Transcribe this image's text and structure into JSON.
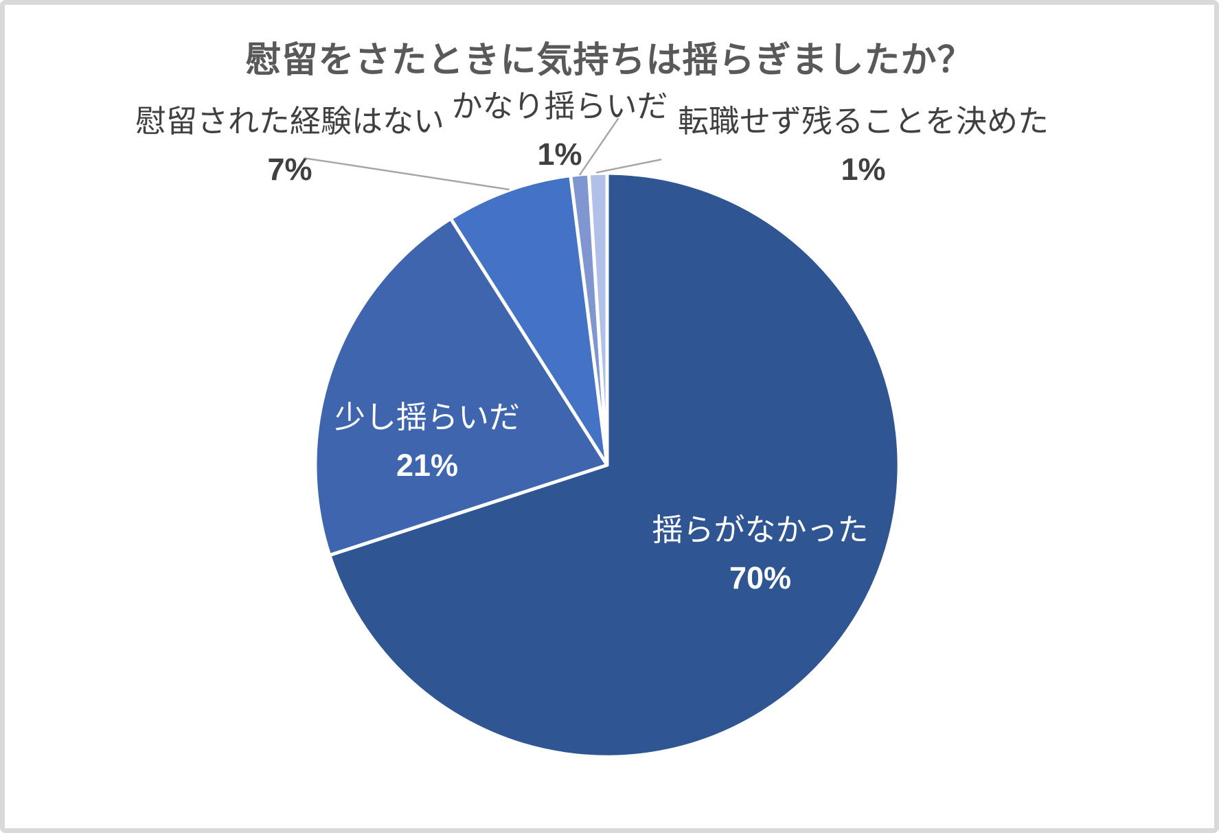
{
  "palette": {
    "frame_border": "#d9d9d9",
    "title_text": "#595959",
    "outside_label_text": "#404040",
    "inside_label_text": "#ffffff",
    "leader_line": "#a6a6a6",
    "slice_border": "#ffffff"
  },
  "chart_data": {
    "type": "pie",
    "title": "慰留をさたときに気持ちは揺らぎましたか？",
    "start_angle_deg": 0,
    "direction": "clockwise",
    "legend": "none",
    "slices": [
      {
        "label": "揺らがなかった",
        "value_pct": 70,
        "display": "70%",
        "color": "#2f5593",
        "label_placement": "inside"
      },
      {
        "label": "少し揺らいだ",
        "value_pct": 21,
        "display": "21%",
        "color": "#3e65ae",
        "label_placement": "inside"
      },
      {
        "label": "慰留された経験はない",
        "value_pct": 7,
        "display": "7%",
        "color": "#4472c4",
        "label_placement": "outside"
      },
      {
        "label": "かなり揺らいだ",
        "value_pct": 1,
        "display": "1%",
        "color": "#8096d0",
        "label_placement": "outside"
      },
      {
        "label": "転職せず残ることを決めた",
        "value_pct": 1,
        "display": "1%",
        "color": "#b0c0e8",
        "label_placement": "outside"
      }
    ]
  }
}
